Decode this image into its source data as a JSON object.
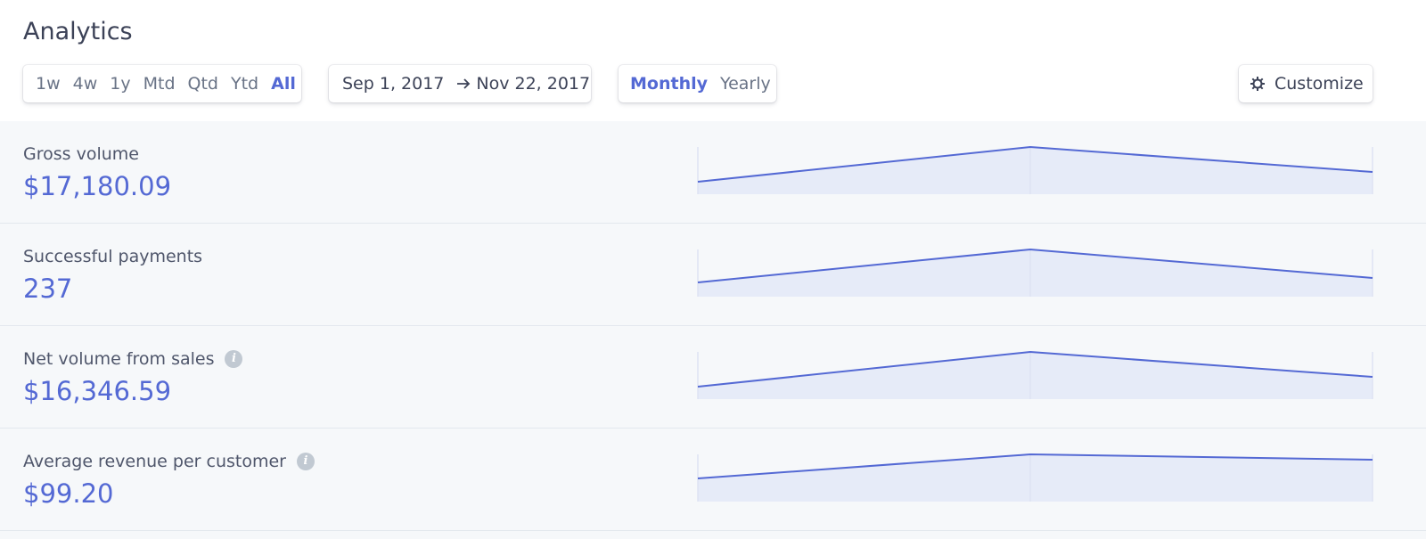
{
  "header": {
    "title": "Analytics"
  },
  "toolbar": {
    "ranges": [
      "1w",
      "4w",
      "1y",
      "Mtd",
      "Qtd",
      "Ytd",
      "All"
    ],
    "date_range": {
      "start": "Sep 1, 2017",
      "end": "Nov 22, 2017"
    },
    "intervals": [
      "Monthly",
      "Yearly"
    ],
    "customize": "Customize"
  },
  "metrics": [
    {
      "label": "Gross volume",
      "value": "$17,180.09"
    },
    {
      "label": "Successful payments",
      "value": "237"
    },
    {
      "label": "Net volume from sales",
      "value": "$16,346.59"
    },
    {
      "label": "Average revenue per customer",
      "value": "$99.20"
    }
  ]
}
